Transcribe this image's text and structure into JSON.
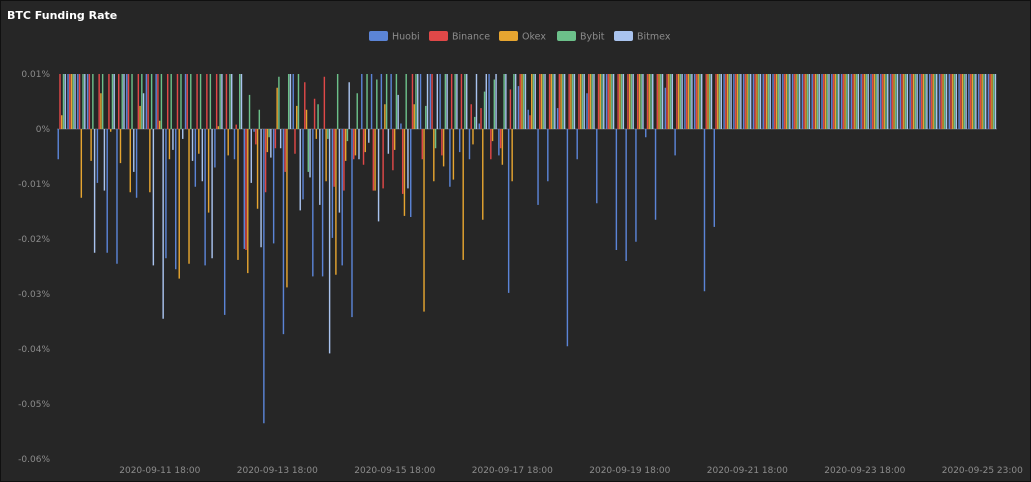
{
  "title": "BTC Funding Rate",
  "colors": {
    "Huobi": "#5b84d6",
    "Binance": "#e04848",
    "Okex": "#e6a530",
    "Bybit": "#6cc08a",
    "Bitmex": "#a9c3ee"
  },
  "chart_data": {
    "type": "bar",
    "title": "BTC Funding Rate",
    "xlabel": "",
    "ylabel": "",
    "ylim": [
      -0.06,
      0.01
    ],
    "y_ticks": [
      0.01,
      0,
      -0.01,
      -0.02,
      -0.03,
      -0.04,
      -0.05,
      -0.06
    ],
    "y_tick_labels": [
      "0.01%",
      "0%",
      "-0.01%",
      "-0.02%",
      "-0.03%",
      "-0.04%",
      "-0.05%",
      "-0.06%"
    ],
    "x_tick_labels": [
      {
        "label": "2020-09-11 18:00",
        "index": 10
      },
      {
        "label": "2020-09-13 18:00",
        "index": 22
      },
      {
        "label": "2020-09-15 18:00",
        "index": 34
      },
      {
        "label": "2020-09-17 18:00",
        "index": 46
      },
      {
        "label": "2020-09-19 18:00",
        "index": 58
      },
      {
        "label": "2020-09-21 18:00",
        "index": 70
      },
      {
        "label": "2020-09-23 18:00",
        "index": 82
      },
      {
        "label": "2020-09-25 23:00",
        "index": 94
      }
    ],
    "grid": false,
    "legend": "top-center",
    "series": [
      {
        "name": "Huobi",
        "values": [
          -0.0055,
          0.01,
          0.01,
          0.01,
          -0.0098,
          -0.0225,
          -0.0245,
          0.01,
          -0.0125,
          0.01,
          0.01,
          -0.0235,
          -0.0255,
          0.01,
          -0.0105,
          -0.0248,
          -0.007,
          -0.0338,
          -0.0055,
          -0.0218,
          -0.0005,
          -0.0535,
          -0.0208,
          -0.0373,
          0.01,
          -0.0128,
          -0.0268,
          -0.0268,
          -0.0198,
          -0.0248,
          -0.0342,
          0.01,
          0.01,
          0.01,
          0.01,
          0.001,
          -0.016,
          0.01,
          0.01,
          0.01,
          -0.0105,
          -0.0042,
          -0.0055,
          0.001,
          0.01,
          -0.0048,
          -0.0298,
          0.0078,
          0.0035,
          -0.0138,
          -0.0095,
          0.0038,
          -0.0395,
          -0.0055,
          0.0065,
          -0.0135,
          0.01,
          -0.022,
          -0.024,
          -0.0205,
          -0.0015,
          -0.0165,
          0.0075,
          -0.0048,
          0.01,
          0.01,
          -0.0295,
          -0.0178,
          0.01,
          0.01,
          0.01,
          0.01,
          0.01,
          0.01,
          0.01,
          0.01,
          0.01,
          0.01,
          0.01,
          0.01,
          0.01,
          0.01,
          0.01,
          0.01,
          0.01,
          0.01,
          0.01,
          0.01,
          0.01,
          0.01,
          0.01,
          0.01,
          0.01,
          0.01,
          0.01,
          0.01
        ]
      },
      {
        "name": "Binance",
        "values": [
          0.01,
          0.01,
          0.01,
          0.01,
          0.01,
          0.01,
          0.01,
          0.01,
          0.01,
          0.01,
          0.01,
          0.01,
          0.01,
          0.01,
          0.01,
          0.01,
          0.01,
          0.01,
          0.0008,
          -0.022,
          -0.0028,
          -0.0115,
          -0.0035,
          -0.0078,
          -0.0045,
          0.0085,
          0.0055,
          0.0095,
          -0.0105,
          -0.0112,
          -0.0055,
          -0.0065,
          -0.0112,
          -0.0108,
          -0.0075,
          -0.0118,
          0.01,
          -0.0055,
          0.01,
          -0.0048,
          0.01,
          0.01,
          0.0045,
          0.0038,
          -0.0055,
          -0.0035,
          0.0072,
          0.01,
          0.0025,
          0.01,
          0.01,
          0.01,
          0.01,
          0.01,
          0.01,
          0.01,
          0.01,
          0.01,
          0.01,
          0.01,
          0.01,
          0.01,
          0.01,
          0.01,
          0.01,
          0.01,
          0.01,
          0.01,
          0.01,
          0.01,
          0.01,
          0.01,
          0.01,
          0.01,
          0.01,
          0.01,
          0.01,
          0.01,
          0.01,
          0.01,
          0.01,
          0.01,
          0.01,
          0.01,
          0.01,
          0.01,
          0.01,
          0.01,
          0.01,
          0.01,
          0.01,
          0.01,
          0.01,
          0.01,
          0.01,
          0.01
        ]
      },
      {
        "name": "Okex",
        "values": [
          0.0025,
          0.01,
          -0.0125,
          -0.0058,
          0.0065,
          -0.0005,
          -0.0062,
          -0.0115,
          0.0042,
          -0.0115,
          0.0015,
          -0.0055,
          -0.0272,
          -0.0245,
          -0.0045,
          -0.0152,
          0.0005,
          -0.0048,
          -0.0238,
          -0.0262,
          -0.0145,
          -0.0042,
          0.0075,
          -0.0288,
          0.0042,
          0.0035,
          -0.0018,
          -0.0095,
          -0.0265,
          -0.0058,
          -0.0048,
          -0.0042,
          -0.0112,
          0.0045,
          -0.0038,
          -0.0158,
          0.0045,
          -0.0332,
          -0.0095,
          -0.0068,
          -0.0092,
          -0.0238,
          -0.0028,
          -0.0165,
          -0.0022,
          -0.0065,
          -0.0095,
          0.01,
          0.01,
          0.01,
          0.01,
          0.01,
          0.01,
          0.01,
          0.01,
          0.01,
          0.01,
          0.01,
          0.01,
          0.01,
          0.01,
          0.01,
          0.01,
          0.01,
          0.01,
          0.01,
          0.01,
          0.01,
          0.01,
          0.01,
          0.01,
          0.01,
          0.01,
          0.01,
          0.01,
          0.01,
          0.01,
          0.01,
          0.01,
          0.01,
          0.01,
          0.01,
          0.01,
          0.01,
          0.01,
          0.01,
          0.01,
          0.01,
          0.01,
          0.01,
          0.01,
          0.01,
          0.01,
          0.01,
          0.01,
          0.01
        ]
      },
      {
        "name": "Bybit",
        "values": [
          0.01,
          0.01,
          0.01,
          0.01,
          0.01,
          0.01,
          0.01,
          0.01,
          0.01,
          0.01,
          0.01,
          0.01,
          0.01,
          0.01,
          0.01,
          0.01,
          0.01,
          0.01,
          0.01,
          0.0062,
          0.0035,
          -0.0015,
          0.0095,
          0.01,
          0.01,
          -0.0078,
          0.0045,
          -0.0018,
          0.01,
          -0.0022,
          0.0065,
          0.01,
          0.009,
          0.01,
          0.01,
          0.01,
          0.01,
          0.0042,
          -0.0035,
          0.01,
          0.01,
          0.01,
          0.0022,
          0.0068,
          0.009,
          0.01,
          0.01,
          0.01,
          0.01,
          0.01,
          0.01,
          0.01,
          0.01,
          0.01,
          0.01,
          0.01,
          0.01,
          0.01,
          0.01,
          0.01,
          0.01,
          0.01,
          0.01,
          0.01,
          0.01,
          0.01,
          0.01,
          0.01,
          0.01,
          0.01,
          0.01,
          0.01,
          0.01,
          0.01,
          0.01,
          0.01,
          0.01,
          0.01,
          0.01,
          0.01,
          0.01,
          0.01,
          0.01,
          0.01,
          0.01,
          0.01,
          0.01,
          0.01,
          0.01,
          0.01,
          0.01,
          0.01,
          0.01,
          0.01,
          0.01,
          0.01
        ]
      },
      {
        "name": "Bitmex",
        "values": [
          0.01,
          0.01,
          0.01,
          -0.0225,
          -0.0112,
          0.01,
          0.01,
          -0.0078,
          0.0065,
          -0.0248,
          -0.0345,
          -0.0038,
          -0.0018,
          -0.0058,
          -0.0095,
          -0.0235,
          0.01,
          0.01,
          0.01,
          -0.0098,
          -0.0215,
          -0.0052,
          -0.0035,
          0.01,
          -0.0148,
          -0.0088,
          -0.0138,
          -0.0408,
          -0.0152,
          0.0085,
          -0.0055,
          -0.0025,
          -0.0168,
          -0.0045,
          0.0062,
          -0.0108,
          0.01,
          0.01,
          0.01,
          0.01,
          0.01,
          0.01,
          0.01,
          0.01,
          0.01,
          0.01,
          0.01,
          0.01,
          0.01,
          0.01,
          0.01,
          0.01,
          0.01,
          0.01,
          0.01,
          0.01,
          0.01,
          0.01,
          0.01,
          0.01,
          0.01,
          0.01,
          0.01,
          0.01,
          0.01,
          0.01,
          0.01,
          0.01,
          0.01,
          0.01,
          0.01,
          0.01,
          0.01,
          0.01,
          0.01,
          0.01,
          0.01,
          0.01,
          0.01,
          0.01,
          0.01,
          0.01,
          0.01,
          0.01,
          0.01,
          0.01,
          0.01,
          0.01,
          0.01,
          0.01,
          0.01,
          0.01,
          0.01,
          0.01,
          0.01,
          0.01
        ]
      }
    ]
  }
}
